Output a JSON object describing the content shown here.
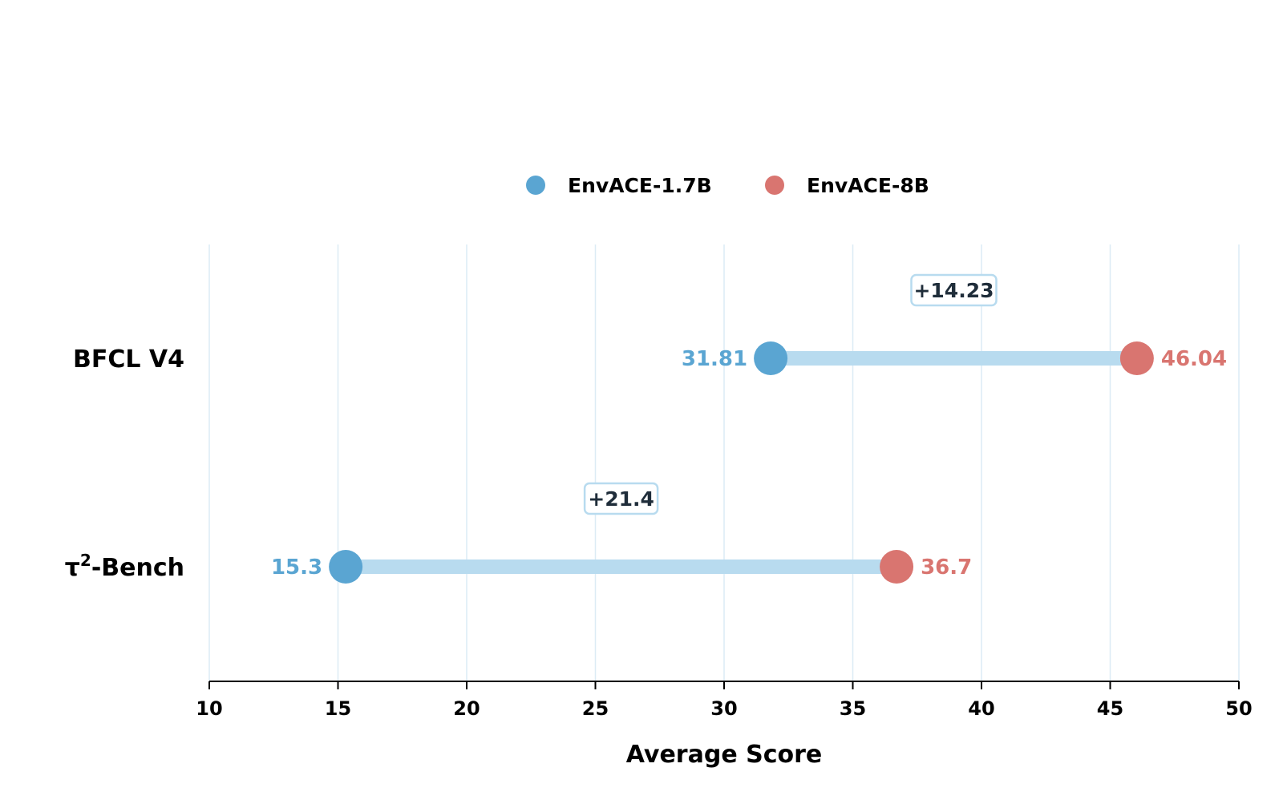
{
  "chart_data": {
    "type": "dumbbell",
    "title": "",
    "xlabel": "Average Score",
    "ylabel": "",
    "xlim": [
      10,
      50
    ],
    "xticks": [
      10,
      15,
      20,
      25,
      30,
      35,
      40,
      45,
      50
    ],
    "grid": "vertical",
    "legend_position": "top-center",
    "categories": [
      {
        "label": "BFCL V4",
        "superscript": ""
      },
      {
        "label": "τ",
        "superscript": "2",
        "suffix": "-Bench"
      }
    ],
    "series": [
      {
        "name": "EnvACE-1.7B",
        "color": "#5aa5d2",
        "values": [
          31.81,
          15.3
        ],
        "labels": [
          "31.81",
          "15.3"
        ]
      },
      {
        "name": "EnvACE-8B",
        "color": "#d97570",
        "values": [
          46.04,
          36.7
        ],
        "labels": [
          "46.04",
          "36.7"
        ]
      }
    ],
    "differences": [
      "+14.23",
      "+21.4"
    ],
    "connector_color": "#b8dbef",
    "grid_color": "#dcebf5",
    "diff_box_border": "#b8dbef",
    "diff_text_color": "#1f2d3a"
  }
}
